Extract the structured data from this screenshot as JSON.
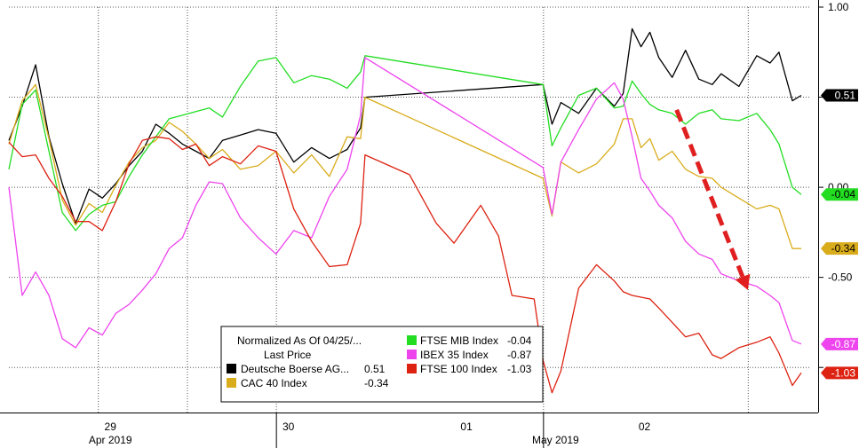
{
  "chart_data": {
    "type": "line",
    "ylim": [
      -1.25,
      1.0
    ],
    "y_ticks": [
      {
        "value": 1.0,
        "label": "1.00"
      },
      {
        "value": 0.0,
        "label": "0.00"
      },
      {
        "value": -0.5,
        "label": "-0.50"
      }
    ],
    "grid": true,
    "x_day_labels": [
      "29",
      "30",
      "01",
      "02"
    ],
    "x_month_labels": [
      "Apr 2019",
      "May 2019"
    ],
    "legend": {
      "placement": "bottom-center",
      "title": "Normalized As Of 04/25/...",
      "subtitle": "Last Price",
      "entries": [
        {
          "name": "Deutsche Boerse AG...",
          "value": "0.51",
          "color": "#000000"
        },
        {
          "name": "CAC 40 Index",
          "value": "-0.34",
          "color": "#d9ac1c"
        },
        {
          "name": "FTSE MIB Index",
          "value": "-0.04",
          "color": "#22dd22"
        },
        {
          "name": "IBEX 35 Index",
          "value": "-0.87",
          "color": "#ee44ee"
        },
        {
          "name": "FTSE 100 Index",
          "value": "-1.03",
          "color": "#dd2211"
        }
      ]
    },
    "last_value_tags": [
      {
        "label": "0.51",
        "value": 0.51,
        "bg": "#000000",
        "fg": "#ffffff"
      },
      {
        "label": "-0.04",
        "value": -0.04,
        "bg": "#22dd22",
        "fg": "#000000"
      },
      {
        "label": "-0.34",
        "value": -0.34,
        "bg": "#d9ac1c",
        "fg": "#000000"
      },
      {
        "label": "-0.87",
        "value": -0.87,
        "bg": "#ee44ee",
        "fg": "#ffffff"
      },
      {
        "label": "-1.03",
        "value": -1.03,
        "bg": "#dd2211",
        "fg": "#ffffff"
      }
    ],
    "annotation": {
      "type": "arrow",
      "color": "#e02020",
      "style": "dashed",
      "from": [
        7.5,
        0.43
      ],
      "to": [
        8.3,
        -0.57
      ]
    },
    "series": [
      {
        "name": "Deutsche Boerse AG...",
        "color": "#000000",
        "points": [
          [
            0.0,
            0.26
          ],
          [
            0.15,
            0.45
          ],
          [
            0.3,
            0.68
          ],
          [
            0.45,
            0.28
          ],
          [
            0.6,
            0.02
          ],
          [
            0.75,
            -0.2
          ],
          [
            0.9,
            -0.01
          ],
          [
            1.05,
            -0.06
          ],
          [
            1.2,
            0.02
          ],
          [
            1.35,
            0.12
          ],
          [
            1.5,
            0.2
          ],
          [
            1.65,
            0.35
          ],
          [
            1.8,
            0.3
          ],
          [
            1.95,
            0.24
          ],
          [
            2.1,
            0.2
          ],
          [
            2.25,
            0.16
          ],
          [
            2.4,
            0.26
          ],
          [
            2.6,
            0.29
          ],
          [
            2.8,
            0.32
          ],
          [
            3.0,
            0.3
          ],
          [
            3.2,
            0.14
          ],
          [
            3.4,
            0.22
          ],
          [
            3.6,
            0.16
          ],
          [
            3.8,
            0.21
          ],
          [
            3.95,
            0.33
          ],
          [
            4.0,
            0.5
          ],
          [
            6.0,
            0.57
          ],
          [
            6.1,
            0.35
          ],
          [
            6.2,
            0.47
          ],
          [
            6.4,
            0.41
          ],
          [
            6.6,
            0.55
          ],
          [
            6.8,
            0.45
          ],
          [
            6.9,
            0.52
          ],
          [
            7.0,
            0.88
          ],
          [
            7.1,
            0.78
          ],
          [
            7.2,
            0.86
          ],
          [
            7.3,
            0.72
          ],
          [
            7.45,
            0.61
          ],
          [
            7.6,
            0.76
          ],
          [
            7.75,
            0.6
          ],
          [
            7.9,
            0.57
          ],
          [
            8.0,
            0.63
          ],
          [
            8.2,
            0.56
          ],
          [
            8.4,
            0.73
          ],
          [
            8.55,
            0.69
          ],
          [
            8.65,
            0.75
          ],
          [
            8.8,
            0.48
          ],
          [
            8.9,
            0.51
          ]
        ]
      },
      {
        "name": "CAC 40 Index",
        "color": "#d9ac1c",
        "points": [
          [
            0.0,
            0.24
          ],
          [
            0.15,
            0.48
          ],
          [
            0.3,
            0.57
          ],
          [
            0.45,
            0.27
          ],
          [
            0.6,
            -0.07
          ],
          [
            0.75,
            -0.21
          ],
          [
            0.9,
            -0.09
          ],
          [
            1.05,
            -0.14
          ],
          [
            1.2,
            0.01
          ],
          [
            1.35,
            0.14
          ],
          [
            1.5,
            0.22
          ],
          [
            1.65,
            0.26
          ],
          [
            1.8,
            0.36
          ],
          [
            1.95,
            0.31
          ],
          [
            2.1,
            0.24
          ],
          [
            2.25,
            0.16
          ],
          [
            2.4,
            0.21
          ],
          [
            2.6,
            0.1
          ],
          [
            2.8,
            0.12
          ],
          [
            3.0,
            0.2
          ],
          [
            3.2,
            0.08
          ],
          [
            3.4,
            0.18
          ],
          [
            3.6,
            0.06
          ],
          [
            3.8,
            0.28
          ],
          [
            3.95,
            0.27
          ],
          [
            4.0,
            0.5
          ],
          [
            6.0,
            0.05
          ],
          [
            6.1,
            -0.16
          ],
          [
            6.2,
            0.14
          ],
          [
            6.4,
            0.08
          ],
          [
            6.6,
            0.13
          ],
          [
            6.8,
            0.24
          ],
          [
            6.9,
            0.38
          ],
          [
            7.0,
            0.38
          ],
          [
            7.1,
            0.22
          ],
          [
            7.2,
            0.27
          ],
          [
            7.3,
            0.15
          ],
          [
            7.45,
            0.2
          ],
          [
            7.6,
            0.1
          ],
          [
            7.75,
            0.06
          ],
          [
            7.9,
            0.05
          ],
          [
            8.0,
            0.0
          ],
          [
            8.2,
            -0.06
          ],
          [
            8.4,
            -0.12
          ],
          [
            8.55,
            -0.1
          ],
          [
            8.65,
            -0.12
          ],
          [
            8.8,
            -0.34
          ],
          [
            8.9,
            -0.34
          ]
        ]
      },
      {
        "name": "FTSE MIB Index",
        "color": "#22dd22",
        "points": [
          [
            0.0,
            0.1
          ],
          [
            0.15,
            0.46
          ],
          [
            0.3,
            0.54
          ],
          [
            0.45,
            0.2
          ],
          [
            0.6,
            -0.14
          ],
          [
            0.75,
            -0.24
          ],
          [
            0.9,
            -0.15
          ],
          [
            1.05,
            -0.1
          ],
          [
            1.2,
            -0.08
          ],
          [
            1.35,
            0.06
          ],
          [
            1.5,
            0.18
          ],
          [
            1.65,
            0.28
          ],
          [
            1.8,
            0.38
          ],
          [
            1.95,
            0.4
          ],
          [
            2.1,
            0.42
          ],
          [
            2.25,
            0.44
          ],
          [
            2.4,
            0.39
          ],
          [
            2.6,
            0.56
          ],
          [
            2.8,
            0.7
          ],
          [
            3.0,
            0.72
          ],
          [
            3.2,
            0.58
          ],
          [
            3.4,
            0.62
          ],
          [
            3.6,
            0.6
          ],
          [
            3.8,
            0.55
          ],
          [
            3.95,
            0.64
          ],
          [
            4.0,
            0.73
          ],
          [
            6.0,
            0.57
          ],
          [
            6.1,
            0.23
          ],
          [
            6.2,
            0.33
          ],
          [
            6.4,
            0.51
          ],
          [
            6.6,
            0.55
          ],
          [
            6.8,
            0.44
          ],
          [
            6.9,
            0.45
          ],
          [
            7.0,
            0.59
          ],
          [
            7.1,
            0.52
          ],
          [
            7.2,
            0.46
          ],
          [
            7.3,
            0.43
          ],
          [
            7.45,
            0.41
          ],
          [
            7.6,
            0.35
          ],
          [
            7.75,
            0.41
          ],
          [
            7.9,
            0.43
          ],
          [
            8.0,
            0.38
          ],
          [
            8.2,
            0.37
          ],
          [
            8.4,
            0.41
          ],
          [
            8.55,
            0.32
          ],
          [
            8.65,
            0.24
          ],
          [
            8.8,
            0.0
          ],
          [
            8.9,
            -0.04
          ]
        ]
      },
      {
        "name": "IBEX 35 Index",
        "color": "#ee44ee",
        "points": [
          [
            0.0,
            0.0
          ],
          [
            0.15,
            -0.6
          ],
          [
            0.3,
            -0.47
          ],
          [
            0.45,
            -0.6
          ],
          [
            0.6,
            -0.84
          ],
          [
            0.75,
            -0.89
          ],
          [
            0.9,
            -0.78
          ],
          [
            1.05,
            -0.82
          ],
          [
            1.2,
            -0.7
          ],
          [
            1.35,
            -0.65
          ],
          [
            1.5,
            -0.57
          ],
          [
            1.65,
            -0.48
          ],
          [
            1.8,
            -0.34
          ],
          [
            1.95,
            -0.28
          ],
          [
            2.1,
            -0.1
          ],
          [
            2.25,
            0.03
          ],
          [
            2.4,
            0.02
          ],
          [
            2.6,
            -0.17
          ],
          [
            2.8,
            -0.28
          ],
          [
            3.0,
            -0.37
          ],
          [
            3.2,
            -0.24
          ],
          [
            3.4,
            -0.28
          ],
          [
            3.6,
            -0.05
          ],
          [
            3.8,
            0.1
          ],
          [
            3.95,
            0.4
          ],
          [
            4.0,
            0.72
          ],
          [
            6.0,
            0.11
          ],
          [
            6.1,
            -0.15
          ],
          [
            6.2,
            0.14
          ],
          [
            6.4,
            0.32
          ],
          [
            6.6,
            0.49
          ],
          [
            6.8,
            0.58
          ],
          [
            6.9,
            0.49
          ],
          [
            7.0,
            0.28
          ],
          [
            7.1,
            0.05
          ],
          [
            7.2,
            -0.02
          ],
          [
            7.3,
            -0.1
          ],
          [
            7.45,
            -0.17
          ],
          [
            7.6,
            -0.3
          ],
          [
            7.75,
            -0.37
          ],
          [
            7.9,
            -0.4
          ],
          [
            8.0,
            -0.48
          ],
          [
            8.2,
            -0.52
          ],
          [
            8.4,
            -0.55
          ],
          [
            8.55,
            -0.6
          ],
          [
            8.65,
            -0.64
          ],
          [
            8.8,
            -0.85
          ],
          [
            8.9,
            -0.87
          ]
        ]
      },
      {
        "name": "FTSE 100 Index",
        "color": "#dd2211",
        "points": [
          [
            0.0,
            0.25
          ],
          [
            0.15,
            0.17
          ],
          [
            0.3,
            0.18
          ],
          [
            0.45,
            0.05
          ],
          [
            0.6,
            -0.05
          ],
          [
            0.75,
            -0.19
          ],
          [
            0.9,
            -0.19
          ],
          [
            1.05,
            -0.24
          ],
          [
            1.2,
            -0.08
          ],
          [
            1.35,
            0.13
          ],
          [
            1.5,
            0.26
          ],
          [
            1.65,
            0.28
          ],
          [
            1.8,
            0.27
          ],
          [
            1.95,
            0.21
          ],
          [
            2.1,
            0.24
          ],
          [
            2.25,
            0.12
          ],
          [
            2.4,
            0.17
          ],
          [
            2.6,
            0.13
          ],
          [
            2.8,
            0.23
          ],
          [
            3.0,
            0.2
          ],
          [
            3.2,
            -0.12
          ],
          [
            3.4,
            -0.3
          ],
          [
            3.6,
            -0.44
          ],
          [
            3.8,
            -0.43
          ],
          [
            3.95,
            -0.2
          ],
          [
            4.0,
            0.18
          ],
          [
            4.5,
            0.07
          ],
          [
            4.8,
            -0.2
          ],
          [
            5.0,
            -0.31
          ],
          [
            5.3,
            -0.1
          ],
          [
            5.5,
            -0.27
          ],
          [
            5.65,
            -0.6
          ],
          [
            5.9,
            -0.62
          ],
          [
            6.0,
            -0.96
          ],
          [
            6.1,
            -1.14
          ],
          [
            6.2,
            -1.02
          ],
          [
            6.4,
            -0.56
          ],
          [
            6.6,
            -0.43
          ],
          [
            6.8,
            -0.52
          ],
          [
            6.9,
            -0.58
          ],
          [
            7.0,
            -0.6
          ],
          [
            7.1,
            -0.61
          ],
          [
            7.2,
            -0.62
          ],
          [
            7.3,
            -0.67
          ],
          [
            7.45,
            -0.75
          ],
          [
            7.6,
            -0.83
          ],
          [
            7.75,
            -0.81
          ],
          [
            7.9,
            -0.93
          ],
          [
            8.0,
            -0.95
          ],
          [
            8.2,
            -0.89
          ],
          [
            8.4,
            -0.86
          ],
          [
            8.55,
            -0.83
          ],
          [
            8.65,
            -0.92
          ],
          [
            8.8,
            -1.1
          ],
          [
            8.9,
            -1.03
          ]
        ]
      }
    ]
  }
}
